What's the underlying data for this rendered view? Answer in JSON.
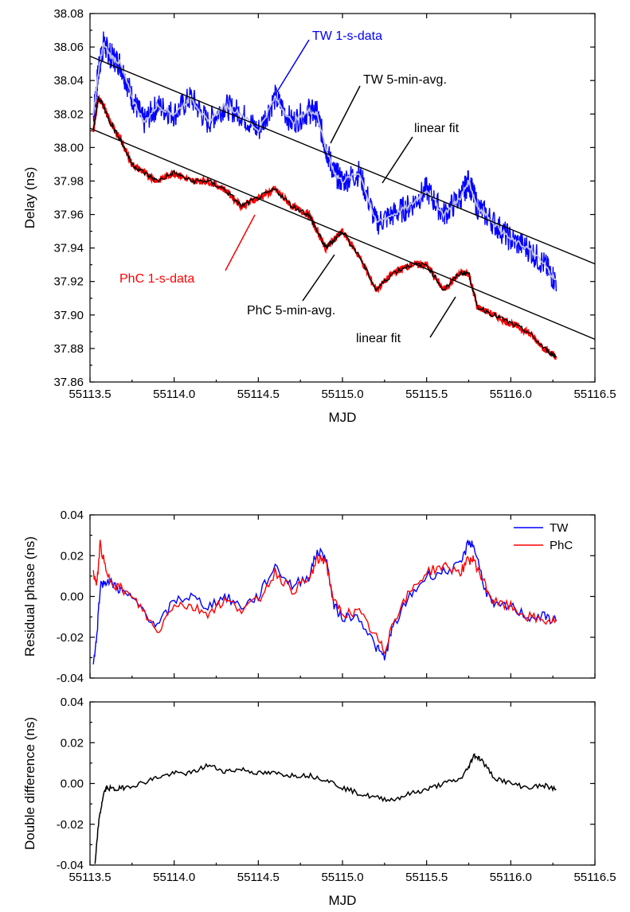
{
  "chart_data": [
    {
      "type": "line",
      "title": "",
      "xlabel": "MJD",
      "ylabel": "Delay (ns)",
      "xlim": [
        55113.5,
        55116.5
      ],
      "ylim": [
        37.86,
        38.08
      ],
      "xticks": [
        "55113.5",
        "55114.0",
        "55114.5",
        "55115.0",
        "55115.5",
        "55116.0",
        "55116.5"
      ],
      "yticks": [
        "37.86",
        "37.88",
        "37.90",
        "37.92",
        "37.94",
        "37.96",
        "37.98",
        "38.00",
        "38.02",
        "38.04",
        "38.06",
        "38.08"
      ],
      "annotations": [
        {
          "text": "TW 1-s-data",
          "color": "#0000ff"
        },
        {
          "text": "TW 5-min-avg.",
          "color": "#000000"
        },
        {
          "text": "linear fit",
          "color": "#000000"
        },
        {
          "text": "PhC 1-s-data",
          "color": "#ff0000"
        },
        {
          "text": "PhC 5-min-avg.",
          "color": "#000000"
        },
        {
          "text": "linear fit",
          "color": "#000000"
        }
      ],
      "series": [
        {
          "name": "TW 1-s-data",
          "color": "#0000ff",
          "x": [
            55113.52,
            55113.55,
            55113.58,
            55113.62,
            55113.68,
            55113.75,
            55113.82,
            55113.9,
            55114.0,
            55114.1,
            55114.2,
            55114.3,
            55114.4,
            55114.5,
            55114.6,
            55114.7,
            55114.8,
            55114.85,
            55114.9,
            55114.95,
            55115.0,
            55115.1,
            55115.2,
            55115.3,
            55115.4,
            55115.5,
            55115.6,
            55115.7,
            55115.75,
            55115.8,
            55115.9,
            55116.0,
            55116.1,
            55116.2,
            55116.27
          ],
          "y": [
            38.02,
            38.045,
            38.062,
            38.055,
            38.05,
            38.03,
            38.015,
            38.025,
            38.02,
            38.03,
            38.015,
            38.025,
            38.02,
            38.01,
            38.03,
            38.015,
            38.022,
            38.02,
            38.0,
            37.985,
            37.98,
            37.985,
            37.955,
            37.96,
            37.965,
            37.975,
            37.96,
            37.97,
            37.98,
            37.965,
            37.955,
            37.945,
            37.94,
            37.93,
            37.92
          ],
          "spread": 0.008
        },
        {
          "name": "TW 5-min-avg.",
          "color": "#c0c0e0",
          "x": [
            55113.52,
            55113.55,
            55113.58,
            55113.62,
            55113.68,
            55113.75,
            55113.82,
            55113.9,
            55114.0,
            55114.1,
            55114.2,
            55114.3,
            55114.4,
            55114.5,
            55114.6,
            55114.7,
            55114.8,
            55114.85,
            55114.9,
            55114.95,
            55115.0,
            55115.1,
            55115.2,
            55115.3,
            55115.4,
            55115.5,
            55115.6,
            55115.7,
            55115.75,
            55115.8,
            55115.9,
            55116.0,
            55116.1,
            55116.2,
            55116.27
          ],
          "y": [
            38.02,
            38.045,
            38.062,
            38.055,
            38.05,
            38.03,
            38.015,
            38.025,
            38.02,
            38.03,
            38.015,
            38.025,
            38.02,
            38.01,
            38.03,
            38.015,
            38.022,
            38.02,
            38.0,
            37.985,
            37.98,
            37.985,
            37.955,
            37.96,
            37.965,
            37.975,
            37.96,
            37.97,
            37.98,
            37.965,
            37.955,
            37.945,
            37.94,
            37.93,
            37.92
          ]
        },
        {
          "name": "PhC 1-s-data",
          "color": "#ff0000",
          "x": [
            55113.52,
            55113.55,
            55113.58,
            55113.62,
            55113.68,
            55113.75,
            55113.82,
            55113.9,
            55114.0,
            55114.1,
            55114.2,
            55114.3,
            55114.4,
            55114.5,
            55114.6,
            55114.7,
            55114.8,
            55114.85,
            55114.9,
            55114.95,
            55115.0,
            55115.1,
            55115.2,
            55115.3,
            55115.4,
            55115.5,
            55115.6,
            55115.7,
            55115.75,
            55115.8,
            55115.9,
            55116.0,
            55116.1,
            55116.2,
            55116.27
          ],
          "y": [
            38.01,
            38.03,
            38.025,
            38.015,
            38.005,
            37.99,
            37.985,
            37.98,
            37.985,
            37.98,
            37.98,
            37.975,
            37.965,
            37.97,
            37.975,
            37.965,
            37.96,
            37.95,
            37.94,
            37.945,
            37.95,
            37.935,
            37.915,
            37.925,
            37.93,
            37.93,
            37.915,
            37.925,
            37.925,
            37.905,
            37.9,
            37.895,
            37.89,
            37.88,
            37.875
          ],
          "spread": 0.002
        },
        {
          "name": "PhC 5-min-avg.",
          "color": "#000000",
          "x": [
            55113.52,
            55113.55,
            55113.58,
            55113.62,
            55113.68,
            55113.75,
            55113.82,
            55113.9,
            55114.0,
            55114.1,
            55114.2,
            55114.3,
            55114.4,
            55114.5,
            55114.6,
            55114.7,
            55114.8,
            55114.85,
            55114.9,
            55114.95,
            55115.0,
            55115.1,
            55115.2,
            55115.3,
            55115.4,
            55115.5,
            55115.6,
            55115.7,
            55115.75,
            55115.8,
            55115.9,
            55116.0,
            55116.1,
            55116.2,
            55116.27
          ],
          "y": [
            38.01,
            38.03,
            38.025,
            38.015,
            38.005,
            37.99,
            37.985,
            37.98,
            37.985,
            37.98,
            37.98,
            37.975,
            37.965,
            37.97,
            37.975,
            37.965,
            37.96,
            37.95,
            37.94,
            37.945,
            37.95,
            37.935,
            37.915,
            37.925,
            37.93,
            37.93,
            37.915,
            37.925,
            37.925,
            37.905,
            37.9,
            37.895,
            37.89,
            37.88,
            37.875
          ]
        },
        {
          "name": "linear fit",
          "color": "#000000",
          "x": [
            55113.5,
            55116.5
          ],
          "y": [
            38.0545,
            37.9305
          ]
        },
        {
          "name": "linear fit",
          "color": "#000000",
          "x": [
            55113.5,
            55116.5
          ],
          "y": [
            38.0115,
            37.8855
          ]
        }
      ]
    },
    {
      "type": "line",
      "title": "",
      "xlabel": "",
      "ylabel": "Residual phase (ns)",
      "xlim": [
        55113.5,
        55116.5
      ],
      "ylim": [
        -0.04,
        0.04
      ],
      "yticks": [
        "-0.04",
        "-0.02",
        "0.00",
        "0.02",
        "0.04"
      ],
      "legend": {
        "position": "top-right",
        "entries": [
          "TW",
          "PhC"
        ]
      },
      "series": [
        {
          "name": "TW",
          "color": "#0000ff",
          "x": [
            55113.52,
            55113.54,
            55113.56,
            55113.6,
            55113.65,
            55113.7,
            55113.8,
            55113.9,
            55114.0,
            55114.1,
            55114.2,
            55114.3,
            55114.4,
            55114.5,
            55114.6,
            55114.7,
            55114.8,
            55114.85,
            55114.9,
            55114.95,
            55115.0,
            55115.1,
            55115.2,
            55115.25,
            55115.3,
            55115.4,
            55115.5,
            55115.6,
            55115.7,
            55115.75,
            55115.78,
            55115.85,
            55115.9,
            55116.0,
            55116.1,
            55116.2,
            55116.27
          ],
          "y": [
            -0.032,
            -0.02,
            0.005,
            0.008,
            0.005,
            0.002,
            -0.005,
            -0.015,
            -0.002,
            0.0,
            -0.005,
            0.0,
            -0.005,
            0.0,
            0.015,
            0.005,
            0.01,
            0.022,
            0.02,
            -0.005,
            -0.01,
            -0.01,
            -0.025,
            -0.03,
            -0.015,
            0.0,
            0.01,
            0.012,
            0.015,
            0.027,
            0.025,
            0.003,
            -0.005,
            -0.005,
            -0.01,
            -0.01,
            -0.012
          ]
        },
        {
          "name": "PhC",
          "color": "#ff0000",
          "x": [
            55113.52,
            55113.54,
            55113.56,
            55113.6,
            55113.65,
            55113.7,
            55113.8,
            55113.9,
            55114.0,
            55114.1,
            55114.2,
            55114.3,
            55114.4,
            55114.5,
            55114.6,
            55114.7,
            55114.8,
            55114.85,
            55114.9,
            55114.95,
            55115.0,
            55115.1,
            55115.2,
            55115.25,
            55115.3,
            55115.4,
            55115.5,
            55115.6,
            55115.7,
            55115.75,
            55115.78,
            55115.85,
            55115.9,
            55116.0,
            55116.1,
            55116.2,
            55116.27
          ],
          "y": [
            0.012,
            0.005,
            0.026,
            0.01,
            0.006,
            0.003,
            -0.005,
            -0.018,
            -0.003,
            -0.005,
            -0.008,
            -0.002,
            -0.006,
            -0.002,
            0.012,
            0.003,
            0.008,
            0.018,
            0.018,
            -0.003,
            -0.008,
            -0.008,
            -0.02,
            -0.027,
            -0.012,
            0.002,
            0.012,
            0.015,
            0.012,
            0.018,
            0.018,
            0.005,
            -0.003,
            -0.005,
            -0.01,
            -0.012,
            -0.012
          ]
        }
      ]
    },
    {
      "type": "line",
      "title": "",
      "xlabel": "MJD",
      "ylabel": "Double difference (ns)",
      "xlim": [
        55113.5,
        55116.5
      ],
      "ylim": [
        -0.04,
        0.04
      ],
      "xticks": [
        "55113.5",
        "55114.0",
        "55114.5",
        "55115.0",
        "55115.5",
        "55116.0",
        "55116.5"
      ],
      "yticks": [
        "-0.04",
        "-0.02",
        "0.00",
        "0.02",
        "0.04"
      ],
      "series": [
        {
          "name": "",
          "color": "#000000",
          "x": [
            55113.53,
            55113.55,
            55113.58,
            55113.6,
            55113.65,
            55113.7,
            55113.8,
            55113.9,
            55114.0,
            55114.1,
            55114.2,
            55114.3,
            55114.4,
            55114.5,
            55114.6,
            55114.7,
            55114.8,
            55114.9,
            55115.0,
            55115.1,
            55115.2,
            55115.3,
            55115.4,
            55115.5,
            55115.6,
            55115.7,
            55115.75,
            55115.78,
            55115.82,
            55115.9,
            55116.0,
            55116.1,
            55116.2,
            55116.27
          ],
          "y": [
            -0.04,
            -0.02,
            -0.005,
            -0.002,
            -0.003,
            -0.002,
            0.0,
            0.003,
            0.005,
            0.005,
            0.009,
            0.006,
            0.007,
            0.005,
            0.005,
            0.004,
            0.004,
            0.002,
            -0.002,
            -0.005,
            -0.007,
            -0.008,
            -0.005,
            -0.003,
            0.0,
            0.002,
            0.008,
            0.014,
            0.012,
            0.003,
            0.0,
            -0.002,
            -0.001,
            -0.003
          ]
        }
      ]
    }
  ]
}
